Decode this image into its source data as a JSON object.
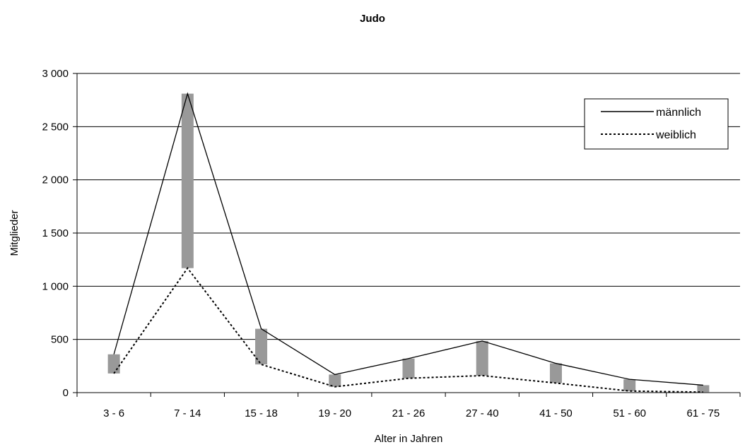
{
  "chart_data": {
    "type": "line",
    "title": "Judo",
    "xlabel": "Alter in Jahren",
    "ylabel": "Mitglieder",
    "categories": [
      "3 - 6",
      "7 - 14",
      "15 - 18",
      "19 - 20",
      "21 - 26",
      "27 - 40",
      "41 - 50",
      "51 - 60",
      "61 - 75"
    ],
    "series": [
      {
        "name": "männlich",
        "values": [
          360,
          2810,
          600,
          170,
          320,
          485,
          275,
          125,
          70
        ],
        "line_style": "solid"
      },
      {
        "name": "weiblich",
        "values": [
          180,
          1170,
          265,
          55,
          135,
          160,
          90,
          15,
          5
        ],
        "line_style": "dotted"
      }
    ],
    "high_low_bars": true,
    "bar_color": "#999999",
    "ylim": [
      0,
      3000
    ],
    "yticks": [
      0,
      500,
      1000,
      1500,
      2000,
      2500,
      3000
    ],
    "ytick_labels": [
      "0",
      "500",
      "1 000",
      "1 500",
      "2 000",
      "2 500",
      "3 000"
    ],
    "grid": true,
    "legend_position": "top-right"
  }
}
